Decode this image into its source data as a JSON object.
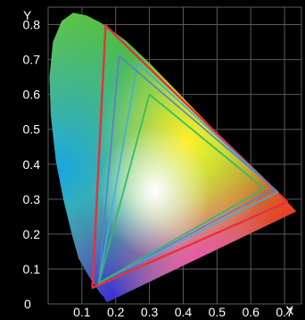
{
  "chart_data": {
    "type": "scatter",
    "title": "",
    "xlabel": "X",
    "ylabel": "Y",
    "xlim": [
      0,
      0.75
    ],
    "ylim": [
      0,
      0.85
    ],
    "grid": true,
    "origin_label": "0",
    "x_tick_labels": [
      "0.1",
      "0.2",
      "0.3",
      "0.4",
      "0.5",
      "0.6",
      "0.7"
    ],
    "y_tick_labels": [
      "0.1",
      "0.2",
      "0.3",
      "0.4",
      "0.5",
      "0.6",
      "0.7",
      "0.8"
    ],
    "x_ticks": [
      0.1,
      0.2,
      0.3,
      0.4,
      0.5,
      0.6,
      0.7
    ],
    "y_ticks": [
      0.1,
      0.2,
      0.3,
      0.4,
      0.5,
      0.6,
      0.7,
      0.8
    ],
    "spectral_locus": [
      [
        0.175,
        0.005
      ],
      [
        0.17,
        0.01
      ],
      [
        0.165,
        0.02
      ],
      [
        0.155,
        0.03
      ],
      [
        0.14,
        0.05
      ],
      [
        0.12,
        0.08
      ],
      [
        0.09,
        0.13
      ],
      [
        0.07,
        0.2
      ],
      [
        0.045,
        0.3
      ],
      [
        0.023,
        0.41
      ],
      [
        0.008,
        0.54
      ],
      [
        0.004,
        0.65
      ],
      [
        0.014,
        0.75
      ],
      [
        0.04,
        0.81
      ],
      [
        0.074,
        0.834
      ],
      [
        0.114,
        0.826
      ],
      [
        0.155,
        0.806
      ],
      [
        0.23,
        0.754
      ],
      [
        0.3,
        0.69
      ],
      [
        0.37,
        0.62
      ],
      [
        0.44,
        0.55
      ],
      [
        0.51,
        0.48
      ],
      [
        0.58,
        0.41
      ],
      [
        0.64,
        0.356
      ],
      [
        0.7,
        0.3
      ],
      [
        0.735,
        0.265
      ]
    ],
    "gamuts": [
      {
        "color": "#e8313a",
        "vertices": [
          [
            0.708,
            0.292
          ],
          [
            0.17,
            0.797
          ],
          [
            0.131,
            0.046
          ]
        ]
      },
      {
        "color": "#3fb0d8",
        "vertices": [
          [
            0.68,
            0.32
          ],
          [
            0.265,
            0.69
          ],
          [
            0.15,
            0.06
          ]
        ]
      },
      {
        "color": "#5a7fc8",
        "vertices": [
          [
            0.67,
            0.33
          ],
          [
            0.21,
            0.71
          ],
          [
            0.15,
            0.06
          ]
        ]
      },
      {
        "color": "#3fb0d8",
        "vertices": [
          [
            0.64,
            0.33
          ],
          [
            0.3,
            0.6
          ],
          [
            0.15,
            0.06
          ]
        ]
      },
      {
        "color": "#2fbf5a",
        "vertices": [
          [
            0.64,
            0.33
          ],
          [
            0.3,
            0.6
          ],
          [
            0.15,
            0.06
          ]
        ]
      }
    ]
  }
}
